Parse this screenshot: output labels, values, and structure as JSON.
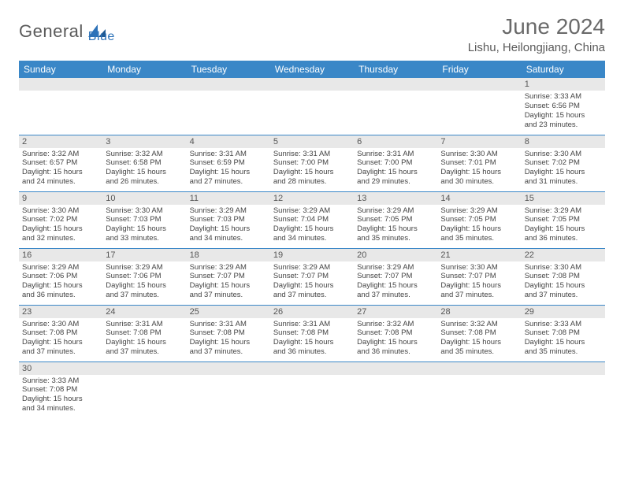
{
  "brand": {
    "part1": "General",
    "part2": "Blue"
  },
  "title": "June 2024",
  "location": "Lishu, Heilongjiang, China",
  "colors": {
    "header_bg": "#3a87c7",
    "header_text": "#ffffff",
    "daynum_bg": "#e8e8e8",
    "row_border": "#3a87c7",
    "brand_gray": "#5a5a5a",
    "brand_blue": "#2d72b8"
  },
  "weekdays": [
    "Sunday",
    "Monday",
    "Tuesday",
    "Wednesday",
    "Thursday",
    "Friday",
    "Saturday"
  ],
  "weeks": [
    [
      null,
      null,
      null,
      null,
      null,
      null,
      {
        "n": "1",
        "sr": "3:33 AM",
        "ss": "6:56 PM",
        "dl": "15 hours and 23 minutes."
      }
    ],
    [
      {
        "n": "2",
        "sr": "3:32 AM",
        "ss": "6:57 PM",
        "dl": "15 hours and 24 minutes."
      },
      {
        "n": "3",
        "sr": "3:32 AM",
        "ss": "6:58 PM",
        "dl": "15 hours and 26 minutes."
      },
      {
        "n": "4",
        "sr": "3:31 AM",
        "ss": "6:59 PM",
        "dl": "15 hours and 27 minutes."
      },
      {
        "n": "5",
        "sr": "3:31 AM",
        "ss": "7:00 PM",
        "dl": "15 hours and 28 minutes."
      },
      {
        "n": "6",
        "sr": "3:31 AM",
        "ss": "7:00 PM",
        "dl": "15 hours and 29 minutes."
      },
      {
        "n": "7",
        "sr": "3:30 AM",
        "ss": "7:01 PM",
        "dl": "15 hours and 30 minutes."
      },
      {
        "n": "8",
        "sr": "3:30 AM",
        "ss": "7:02 PM",
        "dl": "15 hours and 31 minutes."
      }
    ],
    [
      {
        "n": "9",
        "sr": "3:30 AM",
        "ss": "7:02 PM",
        "dl": "15 hours and 32 minutes."
      },
      {
        "n": "10",
        "sr": "3:30 AM",
        "ss": "7:03 PM",
        "dl": "15 hours and 33 minutes."
      },
      {
        "n": "11",
        "sr": "3:29 AM",
        "ss": "7:03 PM",
        "dl": "15 hours and 34 minutes."
      },
      {
        "n": "12",
        "sr": "3:29 AM",
        "ss": "7:04 PM",
        "dl": "15 hours and 34 minutes."
      },
      {
        "n": "13",
        "sr": "3:29 AM",
        "ss": "7:05 PM",
        "dl": "15 hours and 35 minutes."
      },
      {
        "n": "14",
        "sr": "3:29 AM",
        "ss": "7:05 PM",
        "dl": "15 hours and 35 minutes."
      },
      {
        "n": "15",
        "sr": "3:29 AM",
        "ss": "7:05 PM",
        "dl": "15 hours and 36 minutes."
      }
    ],
    [
      {
        "n": "16",
        "sr": "3:29 AM",
        "ss": "7:06 PM",
        "dl": "15 hours and 36 minutes."
      },
      {
        "n": "17",
        "sr": "3:29 AM",
        "ss": "7:06 PM",
        "dl": "15 hours and 37 minutes."
      },
      {
        "n": "18",
        "sr": "3:29 AM",
        "ss": "7:07 PM",
        "dl": "15 hours and 37 minutes."
      },
      {
        "n": "19",
        "sr": "3:29 AM",
        "ss": "7:07 PM",
        "dl": "15 hours and 37 minutes."
      },
      {
        "n": "20",
        "sr": "3:29 AM",
        "ss": "7:07 PM",
        "dl": "15 hours and 37 minutes."
      },
      {
        "n": "21",
        "sr": "3:30 AM",
        "ss": "7:07 PM",
        "dl": "15 hours and 37 minutes."
      },
      {
        "n": "22",
        "sr": "3:30 AM",
        "ss": "7:08 PM",
        "dl": "15 hours and 37 minutes."
      }
    ],
    [
      {
        "n": "23",
        "sr": "3:30 AM",
        "ss": "7:08 PM",
        "dl": "15 hours and 37 minutes."
      },
      {
        "n": "24",
        "sr": "3:31 AM",
        "ss": "7:08 PM",
        "dl": "15 hours and 37 minutes."
      },
      {
        "n": "25",
        "sr": "3:31 AM",
        "ss": "7:08 PM",
        "dl": "15 hours and 37 minutes."
      },
      {
        "n": "26",
        "sr": "3:31 AM",
        "ss": "7:08 PM",
        "dl": "15 hours and 36 minutes."
      },
      {
        "n": "27",
        "sr": "3:32 AM",
        "ss": "7:08 PM",
        "dl": "15 hours and 36 minutes."
      },
      {
        "n": "28",
        "sr": "3:32 AM",
        "ss": "7:08 PM",
        "dl": "15 hours and 35 minutes."
      },
      {
        "n": "29",
        "sr": "3:33 AM",
        "ss": "7:08 PM",
        "dl": "15 hours and 35 minutes."
      }
    ],
    [
      {
        "n": "30",
        "sr": "3:33 AM",
        "ss": "7:08 PM",
        "dl": "15 hours and 34 minutes."
      },
      null,
      null,
      null,
      null,
      null,
      null
    ]
  ],
  "labels": {
    "sunrise": "Sunrise:",
    "sunset": "Sunset:",
    "daylight": "Daylight:"
  }
}
